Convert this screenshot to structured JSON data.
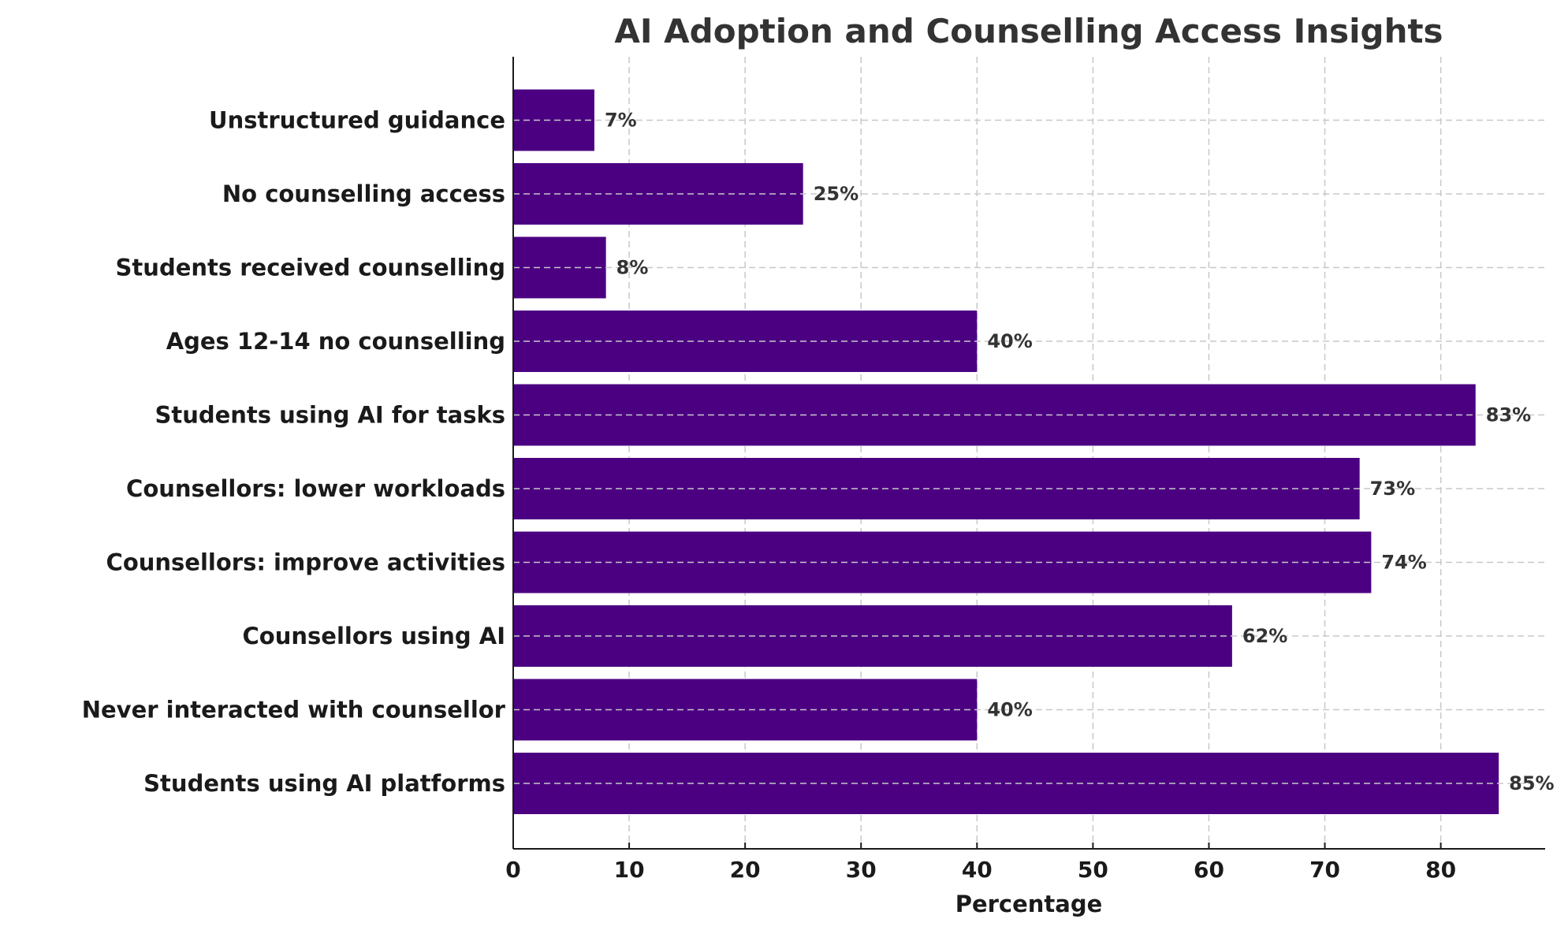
{
  "chart_data": {
    "type": "bar",
    "orientation": "horizontal",
    "title": "AI Adoption and Counselling Access Insights",
    "xlabel": "Percentage",
    "ylabel": "",
    "xlim": [
      0,
      89
    ],
    "xticks": [
      "0",
      "10",
      "20",
      "30",
      "40",
      "50",
      "60",
      "70",
      "80"
    ],
    "grid": true,
    "bar_color": "#4b0082",
    "categories": [
      "Students using AI platforms",
      "Never interacted with counsellor",
      "Counsellors using AI",
      "Counsellors: improve activities",
      "Counsellors: lower workloads",
      "Students using AI for tasks",
      "Ages 12-14 no counselling",
      "Students received counselling",
      "No counselling access",
      "Unstructured guidance"
    ],
    "values": [
      85,
      40,
      62,
      74,
      73,
      83,
      40,
      8,
      25,
      7
    ],
    "data_labels": [
      "85%",
      "40%",
      "62%",
      "74%",
      "73%",
      "83%",
      "40%",
      "8%",
      "25%",
      "7%"
    ]
  }
}
